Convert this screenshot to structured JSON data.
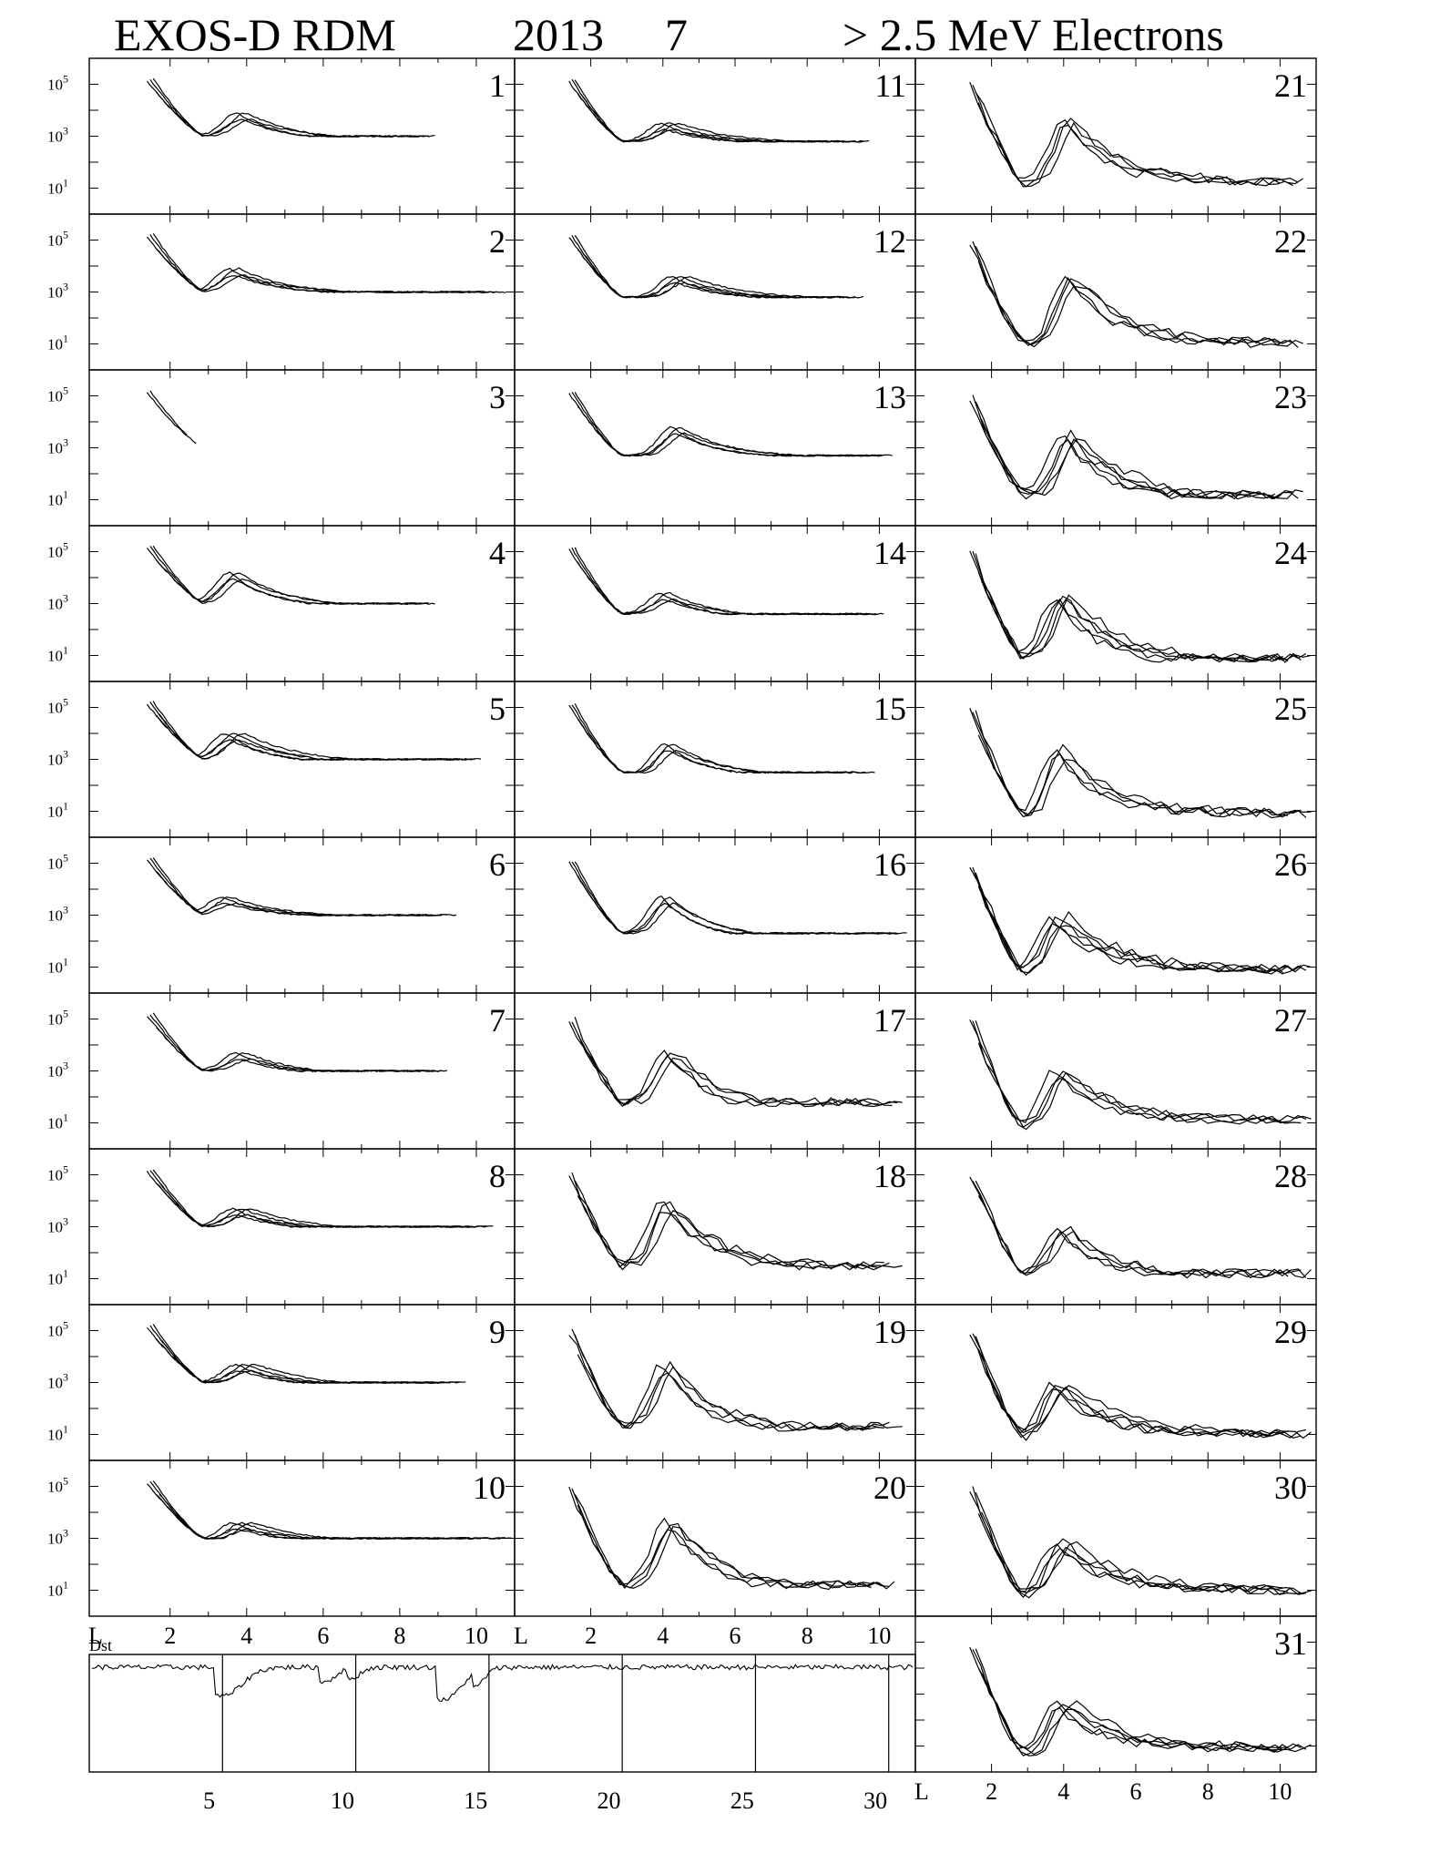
{
  "header": {
    "instrument": "EXOS-D RDM",
    "year": "2013",
    "month": "7",
    "particle": "> 2.5  MeV Electrons"
  },
  "axes": {
    "y_tick_exponents": [
      5,
      3,
      1
    ],
    "x_tick_labels": [
      "2",
      "4",
      "6",
      "8",
      "10"
    ],
    "x_axis_symbol": "L",
    "dst_label": "Dst",
    "dst_day_ticks": [
      "5",
      "10",
      "15",
      "20",
      "25",
      "30"
    ]
  },
  "chart_data": {
    "type": "line",
    "scale": "log-y",
    "xlim": [
      1,
      11
    ],
    "ylim_exponent": [
      0,
      6
    ],
    "panels": [
      {
        "day": "1",
        "inner_min": 3.0,
        "slot_level": 3.0,
        "peak_L": 4.0,
        "peak": 3.8,
        "tail": 2.8,
        "end_L": 9.0,
        "passes": 4
      },
      {
        "day": "2",
        "inner_min": 3.0,
        "slot_level": 3.0,
        "peak_L": 3.8,
        "peak": 3.8,
        "tail": 2.9,
        "end_L": 10.8,
        "passes": 4
      },
      {
        "day": "3",
        "inner_min": 3.0,
        "slot_level": 3.0,
        "peak_L": 3.8,
        "peak": 3.0,
        "tail": 2.9,
        "end_L": 2.7,
        "passes": 2
      },
      {
        "day": "4",
        "inner_min": 3.0,
        "slot_level": 3.0,
        "peak_L": 3.8,
        "peak": 4.1,
        "tail": 2.8,
        "end_L": 9.0,
        "passes": 4
      },
      {
        "day": "5",
        "inner_min": 3.0,
        "slot_level": 3.0,
        "peak_L": 3.7,
        "peak": 3.9,
        "tail": 2.8,
        "end_L": 10.2,
        "passes": 5
      },
      {
        "day": "6",
        "inner_min": 3.0,
        "slot_level": 3.0,
        "peak_L": 3.6,
        "peak": 3.6,
        "tail": 2.9,
        "end_L": 9.5,
        "passes": 4
      },
      {
        "day": "7",
        "inner_min": 3.0,
        "slot_level": 3.0,
        "peak_L": 4.0,
        "peak": 3.6,
        "tail": 2.8,
        "end_L": 9.3,
        "passes": 4
      },
      {
        "day": "8",
        "inner_min": 3.0,
        "slot_level": 3.0,
        "peak_L": 3.9,
        "peak": 3.6,
        "tail": 2.8,
        "end_L": 10.5,
        "passes": 5
      },
      {
        "day": "9",
        "inner_min": 3.0,
        "slot_level": 3.0,
        "peak_L": 4.0,
        "peak": 3.6,
        "tail": 2.8,
        "end_L": 9.8,
        "passes": 5
      },
      {
        "day": "10",
        "inner_min": 3.0,
        "slot_level": 2.9,
        "peak_L": 3.9,
        "peak": 3.5,
        "tail": 2.8,
        "end_L": 11.0,
        "passes": 5
      },
      {
        "day": "11",
        "inner_min": 2.8,
        "slot_level": 2.8,
        "peak_L": 4.2,
        "peak": 3.4,
        "tail": 2.7,
        "end_L": 9.8,
        "passes": 5
      },
      {
        "day": "12",
        "inner_min": 2.8,
        "slot_level": 2.8,
        "peak_L": 4.5,
        "peak": 3.5,
        "tail": 2.7,
        "end_L": 9.6,
        "passes": 5
      },
      {
        "day": "13",
        "inner_min": 2.7,
        "slot_level": 2.7,
        "peak_L": 4.5,
        "peak": 3.7,
        "tail": 2.6,
        "end_L": 10.4,
        "passes": 4
      },
      {
        "day": "14",
        "inner_min": 2.6,
        "slot_level": 2.6,
        "peak_L": 4.2,
        "peak": 3.3,
        "tail": 2.4,
        "end_L": 10.2,
        "passes": 4
      },
      {
        "day": "15",
        "inner_min": 2.5,
        "slot_level": 2.4,
        "peak_L": 4.3,
        "peak": 3.5,
        "tail": 2.3,
        "end_L": 9.9,
        "passes": 4
      },
      {
        "day": "16",
        "inner_min": 2.3,
        "slot_level": 2.3,
        "peak_L": 4.2,
        "peak": 3.6,
        "tail": 2.0,
        "end_L": 10.8,
        "passes": 4
      },
      {
        "day": "17",
        "inner_min": 1.8,
        "slot_level": 1.8,
        "peak_L": 4.3,
        "peak": 3.8,
        "tail": 1.4,
        "end_L": 10.8,
        "passes": 4
      },
      {
        "day": "18",
        "inner_min": 1.5,
        "slot_level": 1.5,
        "peak_L": 4.2,
        "peak": 3.9,
        "tail": 1.4,
        "end_L": 10.7,
        "passes": 4
      },
      {
        "day": "19",
        "inner_min": 1.3,
        "slot_level": 1.3,
        "peak_L": 4.2,
        "peak": 3.6,
        "tail": 1.1,
        "end_L": 10.7,
        "passes": 4
      },
      {
        "day": "20",
        "inner_min": 1.2,
        "slot_level": 1.2,
        "peak_L": 4.3,
        "peak": 3.6,
        "tail": 1.0,
        "end_L": 10.6,
        "passes": 4
      },
      {
        "day": "21",
        "inner_min": 1.2,
        "slot_level": 1.2,
        "peak_L": 4.2,
        "peak": 3.6,
        "tail": 1.2,
        "end_L": 10.8,
        "passes": 4
      },
      {
        "day": "22",
        "inner_min": 1.0,
        "slot_level": 1.0,
        "peak_L": 4.3,
        "peak": 3.6,
        "tail": 1.0,
        "end_L": 10.8,
        "passes": 4
      },
      {
        "day": "23",
        "inner_min": 1.2,
        "slot_level": 1.2,
        "peak_L": 4.2,
        "peak": 3.4,
        "tail": 1.0,
        "end_L": 10.8,
        "passes": 5
      },
      {
        "day": "24",
        "inner_min": 0.9,
        "slot_level": 0.9,
        "peak_L": 4.0,
        "peak": 3.2,
        "tail": 0.7,
        "end_L": 11.0,
        "passes": 5
      },
      {
        "day": "25",
        "inner_min": 0.8,
        "slot_level": 0.8,
        "peak_L": 4.0,
        "peak": 3.3,
        "tail": 0.9,
        "end_L": 11.0,
        "passes": 4
      },
      {
        "day": "26",
        "inner_min": 0.8,
        "slot_level": 0.8,
        "peak_L": 3.9,
        "peak": 2.9,
        "tail": 0.9,
        "end_L": 11.0,
        "passes": 5
      },
      {
        "day": "27",
        "inner_min": 0.8,
        "slot_level": 0.8,
        "peak_L": 4.0,
        "peak": 3.0,
        "tail": 1.1,
        "end_L": 11.0,
        "passes": 4
      },
      {
        "day": "28",
        "inner_min": 1.2,
        "slot_level": 1.2,
        "peak_L": 4.1,
        "peak": 2.9,
        "tail": 1.0,
        "end_L": 11.0,
        "passes": 4
      },
      {
        "day": "29",
        "inner_min": 0.9,
        "slot_level": 0.9,
        "peak_L": 3.9,
        "peak": 2.9,
        "tail": 1.0,
        "end_L": 11.0,
        "passes": 5
      },
      {
        "day": "30",
        "inner_min": 0.8,
        "slot_level": 0.8,
        "peak_L": 4.0,
        "peak": 2.8,
        "tail": 1.0,
        "end_L": 11.0,
        "passes": 5
      },
      {
        "day": "31",
        "inner_min": 0.7,
        "slot_level": 0.7,
        "peak_L": 4.0,
        "peak": 2.6,
        "tail": 0.9,
        "end_L": 11.0,
        "passes": 5
      }
    ],
    "dst": {
      "days": [
        1,
        31
      ],
      "base": 0,
      "dips": [
        {
          "day": 5.5,
          "depth": 40,
          "width": 1.0
        },
        {
          "day": 9.3,
          "depth": 20,
          "width": 0.6
        },
        {
          "day": 10.3,
          "depth": 15,
          "width": 0.5
        },
        {
          "day": 13.8,
          "depth": 45,
          "width": 0.9
        },
        {
          "day": 15.0,
          "depth": 20,
          "width": 0.5
        }
      ]
    }
  }
}
